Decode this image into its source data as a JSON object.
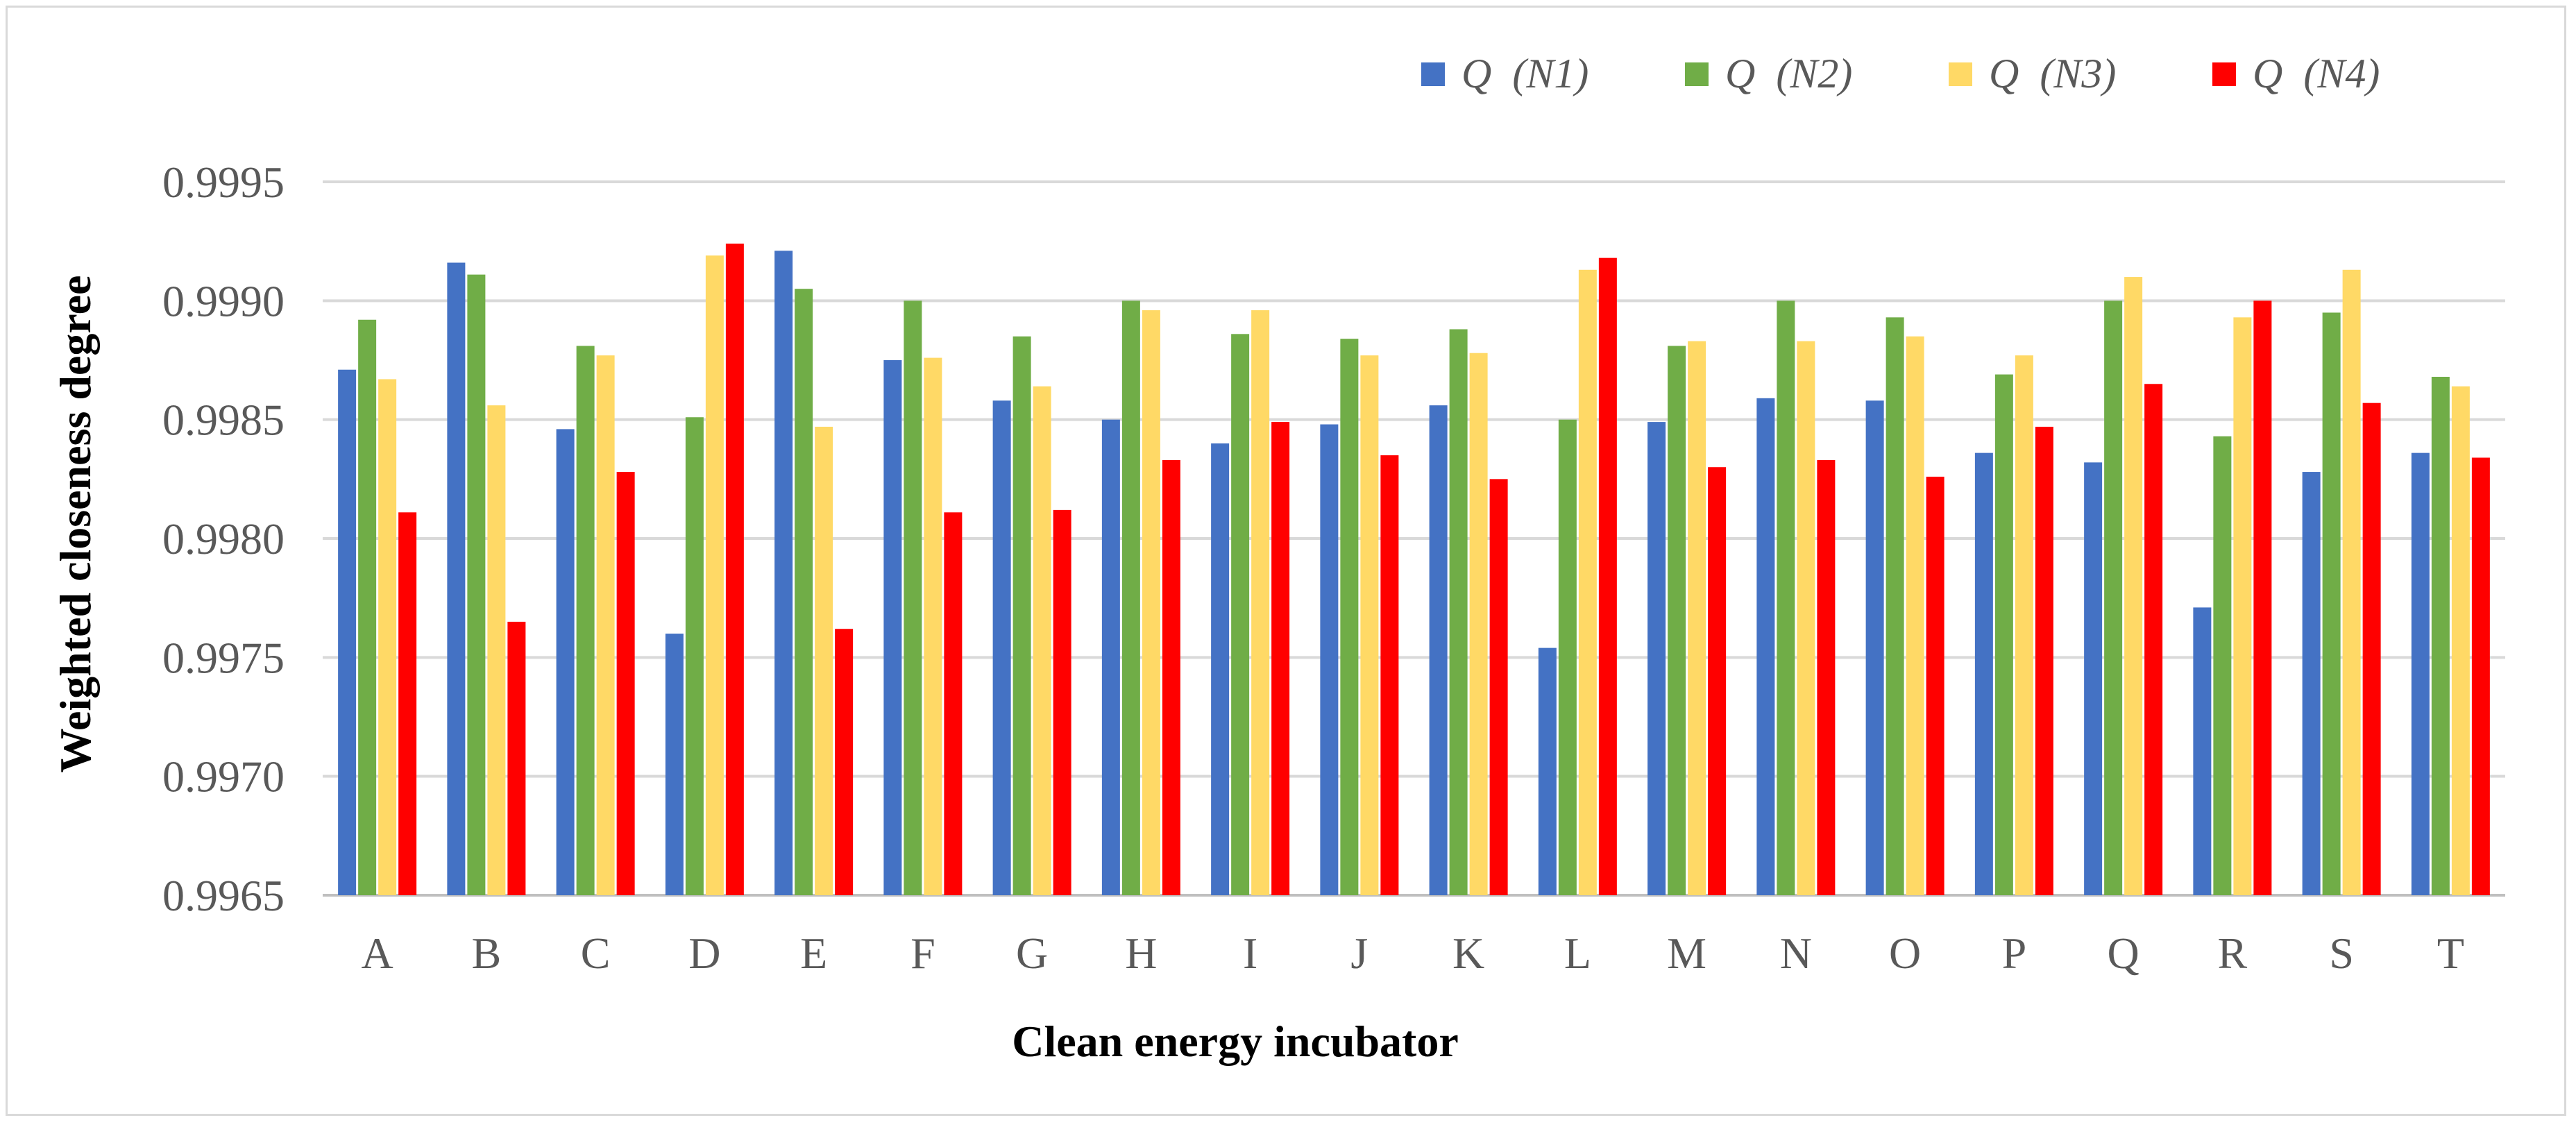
{
  "chart_data": {
    "type": "bar",
    "title": "",
    "xlabel": "Clean energy incubator",
    "ylabel": "Weighted closeness degree",
    "ylim": [
      0.9965,
      0.9995
    ],
    "yticks": [
      "0.9965",
      "0.9970",
      "0.9975",
      "0.9980",
      "0.9985",
      "0.9990",
      "0.9995"
    ],
    "grid": true,
    "legend_position": "top-right",
    "categories": [
      "A",
      "B",
      "C",
      "D",
      "E",
      "F",
      "G",
      "H",
      "I",
      "J",
      "K",
      "L",
      "M",
      "N",
      "O",
      "P",
      "Q",
      "R",
      "S",
      "T"
    ],
    "series": [
      {
        "name": "Q  (N1)",
        "color": "#4472c4",
        "values": [
          0.99871,
          0.99916,
          0.99846,
          0.9976,
          0.99921,
          0.99875,
          0.99858,
          0.9985,
          0.9984,
          0.99848,
          0.99856,
          0.99754,
          0.99849,
          0.99859,
          0.99858,
          0.99836,
          0.99832,
          0.99771,
          0.99828,
          0.99836
        ]
      },
      {
        "name": "Q  (N2)",
        "color": "#70ad47",
        "values": [
          0.99892,
          0.99911,
          0.99881,
          0.99851,
          0.99905,
          0.999,
          0.99885,
          0.999,
          0.99886,
          0.99884,
          0.99888,
          0.9985,
          0.99881,
          0.999,
          0.99893,
          0.99869,
          0.999,
          0.99843,
          0.99895,
          0.99868
        ]
      },
      {
        "name": "Q  (N3)",
        "color": "#ffd966",
        "values": [
          0.99867,
          0.99856,
          0.99877,
          0.99919,
          0.99847,
          0.99876,
          0.99864,
          0.99896,
          0.99896,
          0.99877,
          0.99878,
          0.99913,
          0.99883,
          0.99883,
          0.99885,
          0.99877,
          0.9991,
          0.99893,
          0.99913,
          0.99864
        ]
      },
      {
        "name": "Q  (N4)",
        "color": "#ff0000",
        "values": [
          0.99811,
          0.99765,
          0.99828,
          0.99924,
          0.99762,
          0.99811,
          0.99812,
          0.99833,
          0.99849,
          0.99835,
          0.99825,
          0.99918,
          0.9983,
          0.99833,
          0.99826,
          0.99847,
          0.99865,
          0.999,
          0.99857,
          0.99834
        ]
      }
    ]
  }
}
